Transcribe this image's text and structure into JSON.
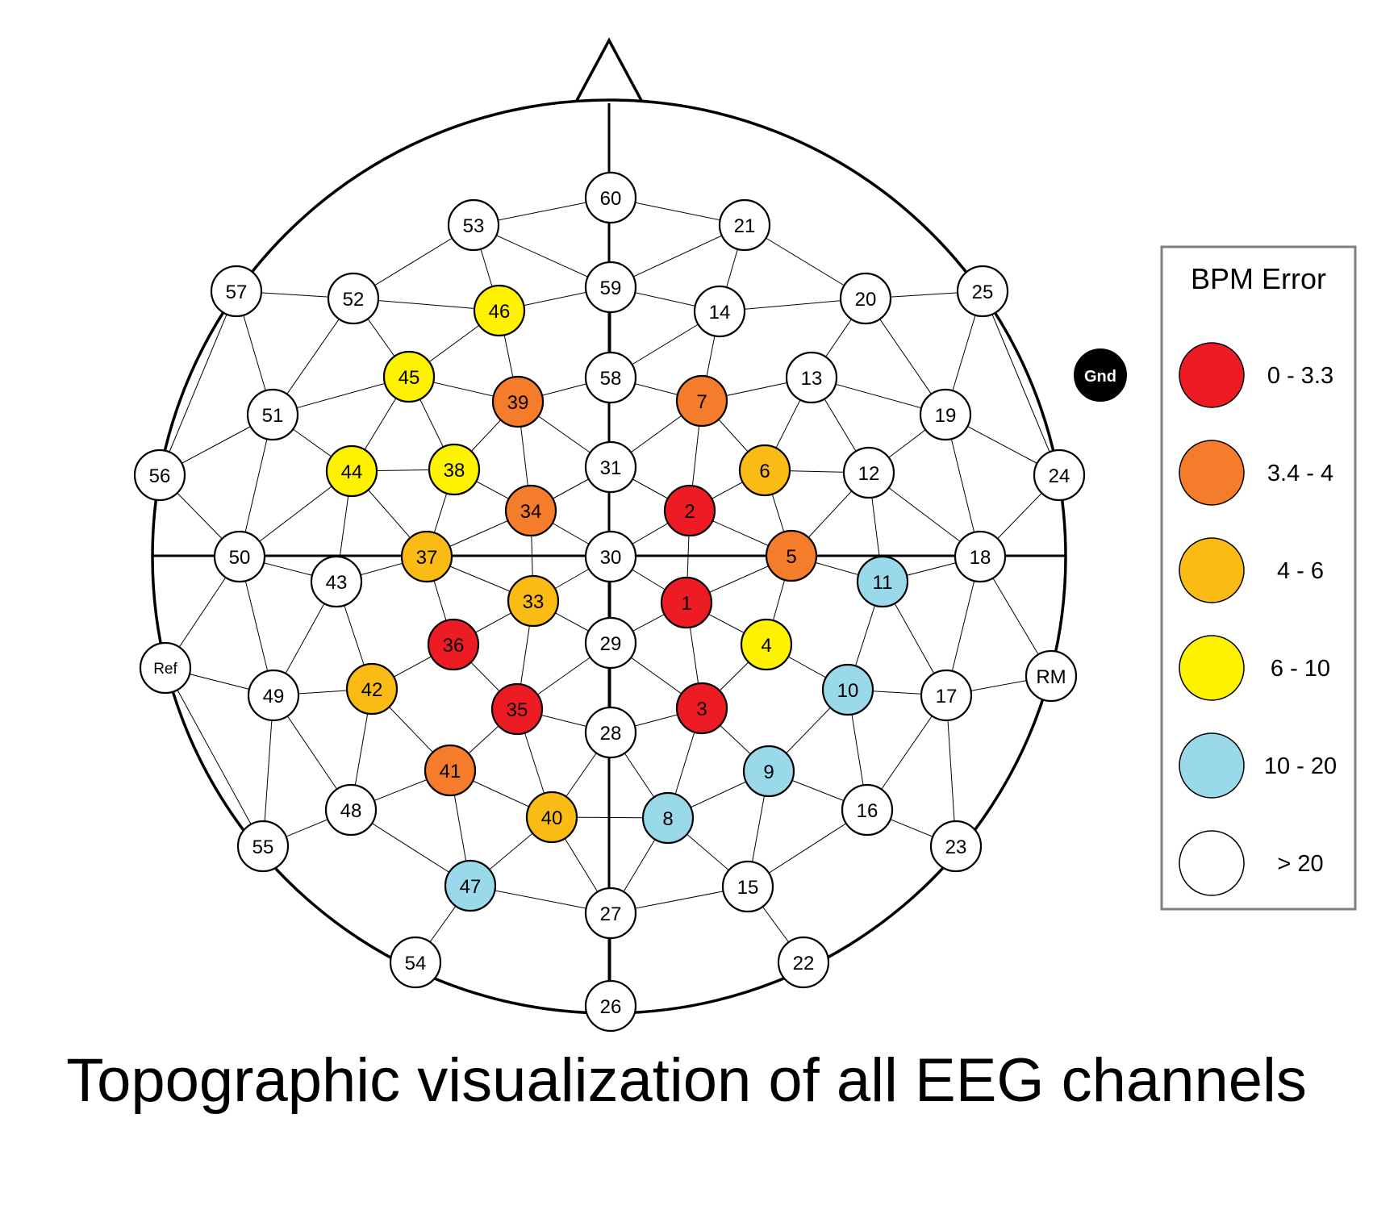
{
  "caption": "Topographic visualization of all EEG channels",
  "legend": {
    "title": "BPM Error",
    "items": [
      {
        "label": "0 - 3.3",
        "color": "#ed1c24"
      },
      {
        "label": "3.4 - 4",
        "color": "#f57c2b"
      },
      {
        "label": "4 - 6",
        "color": "#fbbb15"
      },
      {
        "label": "6 - 10",
        "color": "#fff200"
      },
      {
        "label": "10 - 20",
        "color": "#99d9ea"
      },
      {
        "label": "> 20",
        "color": "#ffffff"
      }
    ]
  },
  "ground_label": "Gnd",
  "channels": [
    {
      "id": "1",
      "class": 0
    },
    {
      "id": "2",
      "class": 0
    },
    {
      "id": "3",
      "class": 0
    },
    {
      "id": "4",
      "class": 3
    },
    {
      "id": "5",
      "class": 1
    },
    {
      "id": "6",
      "class": 2
    },
    {
      "id": "7",
      "class": 1
    },
    {
      "id": "8",
      "class": 4
    },
    {
      "id": "9",
      "class": 4
    },
    {
      "id": "10",
      "class": 4
    },
    {
      "id": "11",
      "class": 4
    },
    {
      "id": "12",
      "class": 5
    },
    {
      "id": "13",
      "class": 5
    },
    {
      "id": "14",
      "class": 5
    },
    {
      "id": "15",
      "class": 5
    },
    {
      "id": "16",
      "class": 5
    },
    {
      "id": "17",
      "class": 5
    },
    {
      "id": "18",
      "class": 5
    },
    {
      "id": "19",
      "class": 5
    },
    {
      "id": "20",
      "class": 5
    },
    {
      "id": "21",
      "class": 5
    },
    {
      "id": "22",
      "class": 5
    },
    {
      "id": "23",
      "class": 5
    },
    {
      "id": "24",
      "class": 5
    },
    {
      "id": "25",
      "class": 5
    },
    {
      "id": "26",
      "class": 5
    },
    {
      "id": "27",
      "class": 5
    },
    {
      "id": "28",
      "class": 5
    },
    {
      "id": "29",
      "class": 5
    },
    {
      "id": "30",
      "class": 5
    },
    {
      "id": "31",
      "class": 5
    },
    {
      "id": "33",
      "class": 2
    },
    {
      "id": "34",
      "class": 1
    },
    {
      "id": "35",
      "class": 0
    },
    {
      "id": "36",
      "class": 0
    },
    {
      "id": "37",
      "class": 2
    },
    {
      "id": "38",
      "class": 3
    },
    {
      "id": "39",
      "class": 1
    },
    {
      "id": "40",
      "class": 2
    },
    {
      "id": "41",
      "class": 1
    },
    {
      "id": "42",
      "class": 2
    },
    {
      "id": "43",
      "class": 5
    },
    {
      "id": "44",
      "class": 3
    },
    {
      "id": "45",
      "class": 3
    },
    {
      "id": "46",
      "class": 3
    },
    {
      "id": "47",
      "class": 4
    },
    {
      "id": "48",
      "class": 5
    },
    {
      "id": "49",
      "class": 5
    },
    {
      "id": "50",
      "class": 5
    },
    {
      "id": "51",
      "class": 5
    },
    {
      "id": "52",
      "class": 5
    },
    {
      "id": "53",
      "class": 5
    },
    {
      "id": "54",
      "class": 5
    },
    {
      "id": "55",
      "class": 5
    },
    {
      "id": "56",
      "class": 5
    },
    {
      "id": "57",
      "class": 5
    },
    {
      "id": "58",
      "class": 5
    },
    {
      "id": "59",
      "class": 5
    },
    {
      "id": "60",
      "class": 5
    },
    {
      "id": "Ref",
      "class": 5
    },
    {
      "id": "RM",
      "class": 5
    }
  ],
  "connections": [
    [
      "60",
      "53"
    ],
    [
      "60",
      "21"
    ],
    [
      "53",
      "59"
    ],
    [
      "21",
      "59"
    ],
    [
      "53",
      "52"
    ],
    [
      "53",
      "46"
    ],
    [
      "21",
      "14"
    ],
    [
      "21",
      "20"
    ],
    [
      "57",
      "52"
    ],
    [
      "57",
      "51"
    ],
    [
      "57",
      "56"
    ],
    [
      "52",
      "46"
    ],
    [
      "52",
      "51"
    ],
    [
      "52",
      "45"
    ],
    [
      "46",
      "59"
    ],
    [
      "46",
      "45"
    ],
    [
      "46",
      "39"
    ],
    [
      "59",
      "14"
    ],
    [
      "59",
      "58"
    ],
    [
      "14",
      "20"
    ],
    [
      "14",
      "7"
    ],
    [
      "14",
      "58"
    ],
    [
      "20",
      "25"
    ],
    [
      "20",
      "13"
    ],
    [
      "20",
      "19"
    ],
    [
      "25",
      "19"
    ],
    [
      "25",
      "24"
    ],
    [
      "51",
      "56"
    ],
    [
      "51",
      "45"
    ],
    [
      "51",
      "50"
    ],
    [
      "51",
      "44"
    ],
    [
      "45",
      "39"
    ],
    [
      "45",
      "38"
    ],
    [
      "45",
      "44"
    ],
    [
      "39",
      "58"
    ],
    [
      "39",
      "38"
    ],
    [
      "39",
      "31"
    ],
    [
      "39",
      "34"
    ],
    [
      "58",
      "7"
    ],
    [
      "7",
      "13"
    ],
    [
      "7",
      "6"
    ],
    [
      "7",
      "31"
    ],
    [
      "7",
      "2"
    ],
    [
      "13",
      "12"
    ],
    [
      "13",
      "6"
    ],
    [
      "13",
      "19"
    ],
    [
      "19",
      "12"
    ],
    [
      "19",
      "24"
    ],
    [
      "19",
      "18"
    ],
    [
      "56",
      "50"
    ],
    [
      "44",
      "38"
    ],
    [
      "44",
      "50"
    ],
    [
      "44",
      "37"
    ],
    [
      "44",
      "43"
    ],
    [
      "38",
      "34"
    ],
    [
      "38",
      "37"
    ],
    [
      "34",
      "31"
    ],
    [
      "34",
      "30"
    ],
    [
      "34",
      "37"
    ],
    [
      "34",
      "33"
    ],
    [
      "31",
      "2"
    ],
    [
      "2",
      "6"
    ],
    [
      "2",
      "30"
    ],
    [
      "2",
      "5"
    ],
    [
      "2",
      "1"
    ],
    [
      "6",
      "12"
    ],
    [
      "6",
      "5"
    ],
    [
      "12",
      "5"
    ],
    [
      "12",
      "11"
    ],
    [
      "12",
      "18"
    ],
    [
      "24",
      "18"
    ],
    [
      "50",
      "43"
    ],
    [
      "50",
      "Ref"
    ],
    [
      "50",
      "49"
    ],
    [
      "37",
      "43"
    ],
    [
      "37",
      "36"
    ],
    [
      "37",
      "33"
    ],
    [
      "30",
      "33"
    ],
    [
      "30",
      "1"
    ],
    [
      "30",
      "29"
    ],
    [
      "5",
      "11"
    ],
    [
      "5",
      "1"
    ],
    [
      "5",
      "4"
    ],
    [
      "11",
      "18"
    ],
    [
      "11",
      "10"
    ],
    [
      "11",
      "17"
    ],
    [
      "18",
      "17"
    ],
    [
      "18",
      "RM"
    ],
    [
      "43",
      "49"
    ],
    [
      "43",
      "42"
    ],
    [
      "33",
      "36"
    ],
    [
      "33",
      "29"
    ],
    [
      "33",
      "35"
    ],
    [
      "1",
      "29"
    ],
    [
      "1",
      "4"
    ],
    [
      "1",
      "3"
    ],
    [
      "4",
      "3"
    ],
    [
      "4",
      "10"
    ],
    [
      "Ref",
      "49"
    ],
    [
      "Ref",
      "55"
    ],
    [
      "36",
      "42"
    ],
    [
      "36",
      "35"
    ],
    [
      "29",
      "35"
    ],
    [
      "29",
      "3"
    ],
    [
      "29",
      "28"
    ],
    [
      "10",
      "17"
    ],
    [
      "10",
      "9"
    ],
    [
      "10",
      "16"
    ],
    [
      "17",
      "RM"
    ],
    [
      "17",
      "16"
    ],
    [
      "17",
      "23"
    ],
    [
      "49",
      "42"
    ],
    [
      "49",
      "48"
    ],
    [
      "49",
      "55"
    ],
    [
      "42",
      "41"
    ],
    [
      "42",
      "48"
    ],
    [
      "35",
      "41"
    ],
    [
      "35",
      "28"
    ],
    [
      "35",
      "40"
    ],
    [
      "28",
      "3"
    ],
    [
      "28",
      "40"
    ],
    [
      "28",
      "8"
    ],
    [
      "3",
      "9"
    ],
    [
      "3",
      "8"
    ],
    [
      "9",
      "8"
    ],
    [
      "9",
      "16"
    ],
    [
      "9",
      "15"
    ],
    [
      "16",
      "23"
    ],
    [
      "16",
      "15"
    ],
    [
      "48",
      "55"
    ],
    [
      "48",
      "41"
    ],
    [
      "48",
      "47"
    ],
    [
      "41",
      "40"
    ],
    [
      "41",
      "47"
    ],
    [
      "40",
      "8"
    ],
    [
      "40",
      "47"
    ],
    [
      "40",
      "27"
    ],
    [
      "8",
      "27"
    ],
    [
      "8",
      "15"
    ],
    [
      "15",
      "22"
    ],
    [
      "15",
      "27"
    ],
    [
      "47",
      "54"
    ],
    [
      "47",
      "27"
    ],
    [
      "27",
      "26"
    ]
  ]
}
